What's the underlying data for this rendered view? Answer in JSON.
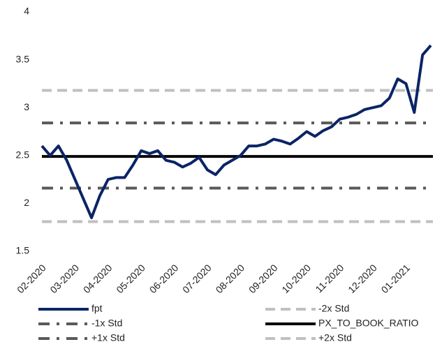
{
  "chart_data": {
    "type": "line",
    "categories": [
      "02-2020",
      null,
      null,
      null,
      "03-2020",
      null,
      null,
      null,
      "04-2020",
      null,
      null,
      null,
      "05-2020",
      null,
      null,
      null,
      "06-2020",
      null,
      null,
      null,
      "07-2020",
      null,
      null,
      null,
      "08-2020",
      null,
      null,
      null,
      "09-2020",
      null,
      null,
      null,
      "10-2020",
      null,
      null,
      null,
      "11-2020",
      null,
      null,
      null,
      "12-2020",
      null,
      null,
      null,
      "01-2021",
      null,
      null,
      null
    ],
    "series": [
      {
        "name": "fpt",
        "color": "#0b2466",
        "values": [
          2.6,
          2.5,
          2.6,
          2.45,
          2.25,
          2.05,
          1.85,
          2.08,
          2.25,
          2.27,
          2.27,
          2.4,
          2.55,
          2.52,
          2.55,
          2.45,
          2.43,
          2.38,
          2.42,
          2.48,
          2.35,
          2.3,
          2.4,
          2.45,
          2.5,
          2.6,
          2.6,
          2.62,
          2.67,
          2.65,
          2.62,
          2.68,
          2.75,
          2.7,
          2.76,
          2.8,
          2.88,
          2.9,
          2.93,
          2.98,
          3.0,
          3.02,
          3.1,
          3.3,
          3.25,
          2.95,
          3.55,
          3.65
        ]
      }
    ],
    "reference_lines": [
      {
        "name": "-2x Std",
        "value": 1.81,
        "color": "#c0c0c0",
        "dash": "dash"
      },
      {
        "name": "-1x Std",
        "value": 2.16,
        "color": "#5a5a5a",
        "dash": "dashdot"
      },
      {
        "name": "+1x Std",
        "value": 2.84,
        "color": "#5a5a5a",
        "dash": "dashdot"
      },
      {
        "name": "PX_TO_BOOK_RATIO",
        "value": 2.49,
        "color": "#000000",
        "dash": "solid"
      },
      {
        "name": "+2x Std",
        "value": 3.18,
        "color": "#c0c0c0",
        "dash": "dash"
      }
    ],
    "ylim": [
      1.5,
      4
    ],
    "yticks": [
      1.5,
      2,
      2.5,
      3,
      3.5,
      4
    ],
    "grid": false
  }
}
